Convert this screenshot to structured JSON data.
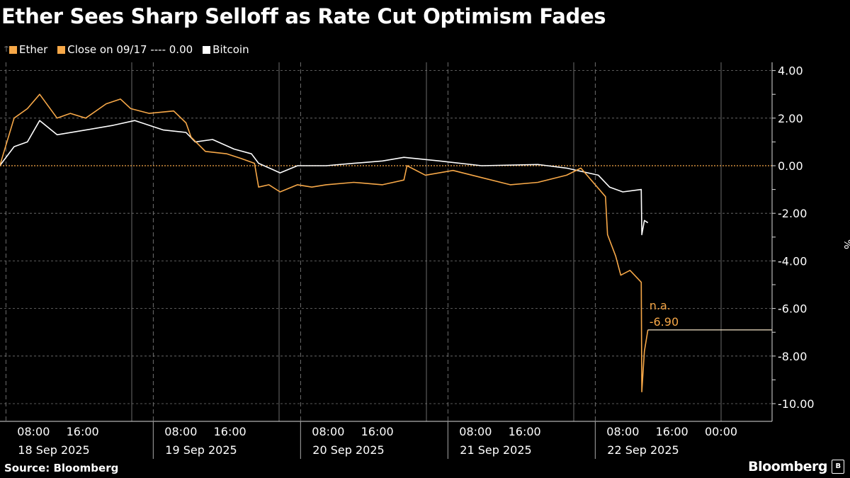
{
  "title": "Ether Sees Sharp Selloff as Rate Cut Optimism Fades",
  "legend": {
    "items": [
      {
        "label": "Ether",
        "color": "#f7a848"
      },
      {
        "label": "Close on 09/17 ---- 0.00",
        "color": "#f7a848"
      },
      {
        "label": "Bitcoin",
        "color": "#ffffff"
      }
    ]
  },
  "footer": {
    "source": "Source: Bloomberg",
    "logo": "Bloomberg"
  },
  "chart_data": {
    "type": "line",
    "title": "Ether Sees Sharp Selloff as Rate Cut Optimism Fades",
    "ylabel": "%",
    "ylim": [
      -10.6,
      4.3
    ],
    "yticks": [
      "4.00",
      "2.00",
      "0.00",
      "-2.00",
      "-4.00",
      "-6.00",
      "-8.00",
      "-10.00"
    ],
    "ytick_values": [
      4,
      2,
      0,
      -2,
      -4,
      -6,
      -8,
      -10
    ],
    "xlim": [
      "2025-09-18T02:30",
      "2025-09-23T08:00"
    ],
    "xticks": [
      {
        "t": "2025-09-18T08:00",
        "label": "08:00"
      },
      {
        "t": "2025-09-18T16:00",
        "label": "16:00"
      },
      {
        "t": "2025-09-19T08:00",
        "label": "08:00"
      },
      {
        "t": "2025-09-19T16:00",
        "label": "16:00"
      },
      {
        "t": "2025-09-20T08:00",
        "label": "08:00"
      },
      {
        "t": "2025-09-20T16:00",
        "label": "16:00"
      },
      {
        "t": "2025-09-21T08:00",
        "label": "08:00"
      },
      {
        "t": "2025-09-21T16:00",
        "label": "16:00"
      },
      {
        "t": "2025-09-22T08:00",
        "label": "08:00"
      },
      {
        "t": "2025-09-22T16:00",
        "label": "16:00"
      },
      {
        "t": "2025-09-23T00:00",
        "label": "00:00"
      }
    ],
    "day_labels": [
      {
        "t": "2025-09-18T12:00",
        "label": "18 Sep 2025"
      },
      {
        "t": "2025-09-19T12:00",
        "label": "19 Sep 2025"
      },
      {
        "t": "2025-09-20T12:00",
        "label": "20 Sep 2025"
      },
      {
        "t": "2025-09-21T12:00",
        "label": "21 Sep 2025"
      },
      {
        "t": "2025-09-22T12:00",
        "label": "22 Sep 2025"
      }
    ],
    "grid": true,
    "legend_position": "top-left",
    "reference_line": {
      "name": "Close on 09/17",
      "value": 0.0
    },
    "annotations": [
      {
        "series": "Ether",
        "lines": [
          "n.a.",
          "-6.90"
        ],
        "value": -6.9
      }
    ],
    "series": [
      {
        "name": "Ether",
        "color": "#f7a848",
        "points": [
          [
            "2025-09-18T02:30",
            0
          ],
          [
            "2025-09-18T04:50",
            2.0
          ],
          [
            "2025-09-18T07:00",
            2.4
          ],
          [
            "2025-09-18T09:00",
            3.0
          ],
          [
            "2025-09-18T11:50",
            2.0
          ],
          [
            "2025-09-18T14:00",
            2.2
          ],
          [
            "2025-09-18T16:30",
            2.0
          ],
          [
            "2025-09-18T19:50",
            2.6
          ],
          [
            "2025-09-18T22:10",
            2.8
          ],
          [
            "2025-09-18T23:50",
            2.4
          ],
          [
            "2025-09-19T02:50",
            2.2
          ],
          [
            "2025-09-19T06:50",
            2.3
          ],
          [
            "2025-09-19T08:50",
            1.8
          ],
          [
            "2025-09-19T09:40",
            1.2
          ],
          [
            "2025-09-19T12:00",
            0.6
          ],
          [
            "2025-09-19T15:30",
            0.5
          ],
          [
            "2025-09-19T17:50",
            0.3
          ],
          [
            "2025-09-19T20:00",
            0.1
          ],
          [
            "2025-09-19T20:40",
            -0.9
          ],
          [
            "2025-09-19T22:20",
            -0.8
          ],
          [
            "2025-09-20T00:10",
            -1.1
          ],
          [
            "2025-09-20T03:00",
            -0.8
          ],
          [
            "2025-09-20T05:20",
            -0.9
          ],
          [
            "2025-09-20T07:40",
            -0.8
          ],
          [
            "2025-09-20T12:10",
            -0.7
          ],
          [
            "2025-09-20T16:50",
            -0.8
          ],
          [
            "2025-09-20T20:20",
            -0.6
          ],
          [
            "2025-09-20T20:50",
            0.0
          ],
          [
            "2025-09-20T23:50",
            -0.4
          ],
          [
            "2025-09-21T04:20",
            -0.2
          ],
          [
            "2025-09-21T09:00",
            -0.5
          ],
          [
            "2025-09-21T13:40",
            -0.8
          ],
          [
            "2025-09-21T18:10",
            -0.7
          ],
          [
            "2025-09-21T22:50",
            -0.4
          ],
          [
            "2025-09-22T01:10",
            -0.1
          ],
          [
            "2025-09-22T03:30",
            -0.8
          ],
          [
            "2025-09-22T05:10",
            -1.3
          ],
          [
            "2025-09-22T05:30",
            -2.9
          ],
          [
            "2025-09-22T06:50",
            -3.8
          ],
          [
            "2025-09-22T07:40",
            -4.6
          ],
          [
            "2025-09-22T09:10",
            -4.4
          ],
          [
            "2025-09-22T11:00",
            -4.9
          ],
          [
            "2025-09-22T11:05",
            -9.5
          ],
          [
            "2025-09-22T11:30",
            -7.8
          ],
          [
            "2025-09-22T12:05",
            -6.9
          ]
        ]
      },
      {
        "name": "Bitcoin",
        "color": "#ffffff",
        "points": [
          [
            "2025-09-18T02:30",
            0
          ],
          [
            "2025-09-18T04:50",
            0.8
          ],
          [
            "2025-09-18T07:00",
            1.0
          ],
          [
            "2025-09-18T09:00",
            1.9
          ],
          [
            "2025-09-18T11:50",
            1.3
          ],
          [
            "2025-09-18T16:30",
            1.5
          ],
          [
            "2025-09-18T21:00",
            1.7
          ],
          [
            "2025-09-19T00:30",
            1.9
          ],
          [
            "2025-09-19T05:10",
            1.5
          ],
          [
            "2025-09-19T08:50",
            1.4
          ],
          [
            "2025-09-19T10:20",
            1.0
          ],
          [
            "2025-09-19T13:10",
            1.1
          ],
          [
            "2025-09-19T16:40",
            0.7
          ],
          [
            "2025-09-19T19:30",
            0.5
          ],
          [
            "2025-09-19T20:40",
            0.1
          ],
          [
            "2025-09-20T00:10",
            -0.3
          ],
          [
            "2025-09-20T03:00",
            0
          ],
          [
            "2025-09-20T07:40",
            0
          ],
          [
            "2025-09-20T12:10",
            0.1
          ],
          [
            "2025-09-20T16:50",
            0.2
          ],
          [
            "2025-09-20T20:20",
            0.35
          ],
          [
            "2025-09-21T02:10",
            0.2
          ],
          [
            "2025-09-21T09:00",
            0
          ],
          [
            "2025-09-21T18:10",
            0.05
          ],
          [
            "2025-09-21T22:50",
            -0.1
          ],
          [
            "2025-09-22T04:00",
            -0.4
          ],
          [
            "2025-09-22T05:50",
            -0.9
          ],
          [
            "2025-09-22T08:00",
            -1.1
          ],
          [
            "2025-09-22T11:00",
            -1.0
          ],
          [
            "2025-09-22T11:05",
            -2.9
          ],
          [
            "2025-09-22T11:30",
            -2.3
          ],
          [
            "2025-09-22T12:05",
            -2.4
          ]
        ]
      }
    ]
  }
}
